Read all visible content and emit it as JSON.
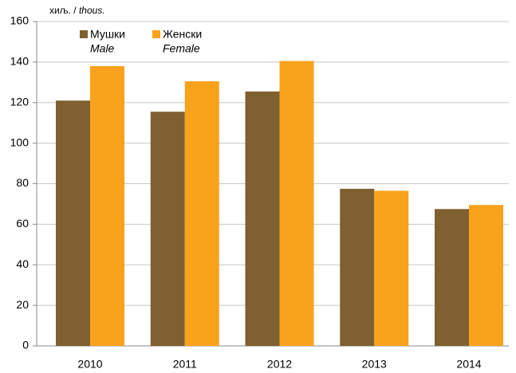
{
  "chart_data": {
    "type": "bar",
    "ylabel": [
      "хиљ. /",
      "thous."
    ],
    "categories": [
      "2010",
      "2011",
      "2012",
      "2013",
      "2014"
    ],
    "series": [
      {
        "name": "Мушки",
        "name_en": "Male",
        "color": "#7f6030",
        "values": [
          121,
          115.5,
          125.5,
          77.5,
          67.5
        ]
      },
      {
        "name": "Женски",
        "name_en": "Female",
        "color": "#f9a21b",
        "values": [
          138,
          130.5,
          140.5,
          76.5,
          69.5
        ]
      }
    ],
    "ylim": [
      0,
      160
    ],
    "yticks": [
      0,
      20,
      40,
      60,
      80,
      100,
      120,
      140,
      160
    ],
    "grid": true
  }
}
